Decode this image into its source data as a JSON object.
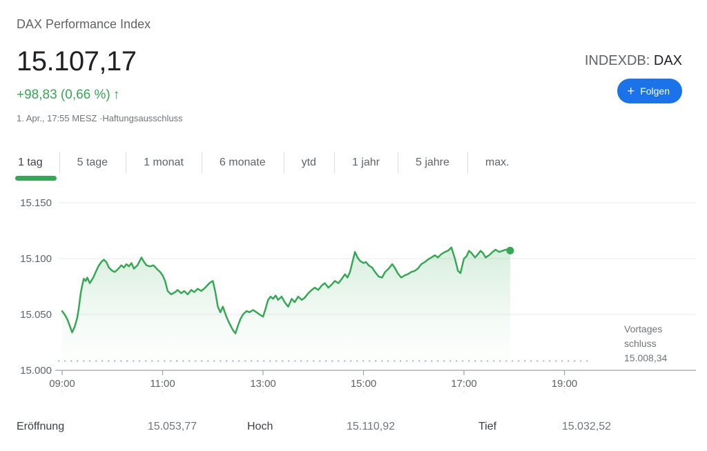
{
  "header": {
    "title": "DAX Performance Index",
    "price": "15.107,17",
    "change": "+98,83 (0,66 %)",
    "change_arrow": "↑",
    "change_direction": "up",
    "timestamp": "1. Apr., 17:55 MESZ",
    "separator": "·",
    "disclaimer": "Haftungsausschluss",
    "exchange": "INDEXDB:",
    "symbol": "DAX",
    "follow_plus": "+",
    "follow_label": "Folgen"
  },
  "tabs": [
    {
      "label": "1 tag",
      "active": true
    },
    {
      "label": "5 tage",
      "active": false
    },
    {
      "label": "1 monat",
      "active": false
    },
    {
      "label": "6 monate",
      "active": false
    },
    {
      "label": "ytd",
      "active": false
    },
    {
      "label": "1 jahr",
      "active": false
    },
    {
      "label": "5 jahre",
      "active": false
    },
    {
      "label": "max.",
      "active": false
    }
  ],
  "chart_data": {
    "type": "area",
    "series_name": "DAX Performance Index (1 tag)",
    "x_unit": "hour_of_day",
    "x_range_hours": [
      9.0,
      17.92
    ],
    "ylim": [
      15000,
      15165
    ],
    "grid": "horizontal",
    "y_ticks": [
      {
        "label": "15.000",
        "value": 15000
      },
      {
        "label": "15.050",
        "value": 15050
      },
      {
        "label": "15.100",
        "value": 15100
      },
      {
        "label": "15.150",
        "value": 15150
      }
    ],
    "x_ticks": [
      {
        "label": "09:00",
        "hour": 9
      },
      {
        "label": "11:00",
        "hour": 11
      },
      {
        "label": "13:00",
        "hour": 13
      },
      {
        "label": "15:00",
        "hour": 15
      },
      {
        "label": "17:00",
        "hour": 17
      },
      {
        "label": "19:00",
        "hour": 19
      }
    ],
    "previous_close": {
      "value": 15008.34,
      "label_line1": "Vortages",
      "label_line2": "schluss",
      "value_label": "15.008,34"
    },
    "series": [
      {
        "name": "DAX",
        "points": [
          [
            9.0,
            15053
          ],
          [
            9.05,
            15050
          ],
          [
            9.1,
            15046
          ],
          [
            9.15,
            15040
          ],
          [
            9.2,
            15034
          ],
          [
            9.25,
            15039
          ],
          [
            9.3,
            15047
          ],
          [
            9.33,
            15055
          ],
          [
            9.37,
            15069
          ],
          [
            9.4,
            15076
          ],
          [
            9.43,
            15082
          ],
          [
            9.47,
            15080
          ],
          [
            9.5,
            15083
          ],
          [
            9.55,
            15078
          ],
          [
            9.62,
            15083
          ],
          [
            9.67,
            15088
          ],
          [
            9.72,
            15093
          ],
          [
            9.78,
            15097
          ],
          [
            9.83,
            15099
          ],
          [
            9.88,
            15097
          ],
          [
            9.93,
            15092
          ],
          [
            10.0,
            15089
          ],
          [
            10.05,
            15088
          ],
          [
            10.12,
            15091
          ],
          [
            10.18,
            15094
          ],
          [
            10.23,
            15092
          ],
          [
            10.28,
            15095
          ],
          [
            10.33,
            15093
          ],
          [
            10.38,
            15096
          ],
          [
            10.43,
            15091
          ],
          [
            10.5,
            15094
          ],
          [
            10.58,
            15101
          ],
          [
            10.63,
            15097
          ],
          [
            10.68,
            15094
          ],
          [
            10.75,
            15093
          ],
          [
            10.82,
            15094
          ],
          [
            10.88,
            15091
          ],
          [
            10.95,
            15088
          ],
          [
            11.0,
            15085
          ],
          [
            11.05,
            15080
          ],
          [
            11.1,
            15071
          ],
          [
            11.17,
            15068
          ],
          [
            11.25,
            15070
          ],
          [
            11.3,
            15072
          ],
          [
            11.37,
            15069
          ],
          [
            11.43,
            15071
          ],
          [
            11.5,
            15068
          ],
          [
            11.57,
            15072
          ],
          [
            11.63,
            15070
          ],
          [
            11.7,
            15073
          ],
          [
            11.77,
            15071
          ],
          [
            11.85,
            15074
          ],
          [
            11.93,
            15078
          ],
          [
            12.0,
            15080
          ],
          [
            12.05,
            15070
          ],
          [
            12.1,
            15057
          ],
          [
            12.15,
            15052
          ],
          [
            12.2,
            15057
          ],
          [
            12.27,
            15048
          ],
          [
            12.33,
            15042
          ],
          [
            12.4,
            15036
          ],
          [
            12.45,
            15033
          ],
          [
            12.5,
            15040
          ],
          [
            12.55,
            15046
          ],
          [
            12.6,
            15050
          ],
          [
            12.67,
            15053
          ],
          [
            12.73,
            15052
          ],
          [
            12.8,
            15054
          ],
          [
            12.87,
            15052
          ],
          [
            12.93,
            15050
          ],
          [
            13.0,
            15048
          ],
          [
            13.05,
            15055
          ],
          [
            13.1,
            15063
          ],
          [
            13.15,
            15066
          ],
          [
            13.2,
            15064
          ],
          [
            13.25,
            15067
          ],
          [
            13.3,
            15063
          ],
          [
            13.37,
            15066
          ],
          [
            13.43,
            15061
          ],
          [
            13.5,
            15057
          ],
          [
            13.57,
            15064
          ],
          [
            13.63,
            15061
          ],
          [
            13.7,
            15066
          ],
          [
            13.77,
            15063
          ],
          [
            13.83,
            15065
          ],
          [
            13.9,
            15069
          ],
          [
            13.97,
            15072
          ],
          [
            14.03,
            15074
          ],
          [
            14.1,
            15072
          ],
          [
            14.17,
            15076
          ],
          [
            14.23,
            15078
          ],
          [
            14.3,
            15074
          ],
          [
            14.37,
            15077
          ],
          [
            14.43,
            15080
          ],
          [
            14.5,
            15078
          ],
          [
            14.57,
            15082
          ],
          [
            14.63,
            15086
          ],
          [
            14.68,
            15083
          ],
          [
            14.73,
            15088
          ],
          [
            14.78,
            15097
          ],
          [
            14.83,
            15106
          ],
          [
            14.88,
            15101
          ],
          [
            14.93,
            15098
          ],
          [
            15.0,
            15096
          ],
          [
            15.05,
            15097
          ],
          [
            15.1,
            15094
          ],
          [
            15.17,
            15092
          ],
          [
            15.23,
            15088
          ],
          [
            15.3,
            15084
          ],
          [
            15.37,
            15083
          ],
          [
            15.43,
            15088
          ],
          [
            15.5,
            15091
          ],
          [
            15.57,
            15095
          ],
          [
            15.62,
            15092
          ],
          [
            15.68,
            15087
          ],
          [
            15.75,
            15083
          ],
          [
            15.82,
            15085
          ],
          [
            15.88,
            15086
          ],
          [
            15.95,
            15088
          ],
          [
            16.02,
            15089
          ],
          [
            16.08,
            15091
          ],
          [
            16.15,
            15095
          ],
          [
            16.22,
            15097
          ],
          [
            16.28,
            15099
          ],
          [
            16.35,
            15101
          ],
          [
            16.42,
            15103
          ],
          [
            16.48,
            15101
          ],
          [
            16.55,
            15104
          ],
          [
            16.62,
            15106
          ],
          [
            16.68,
            15107
          ],
          [
            16.75,
            15110
          ],
          [
            16.82,
            15100
          ],
          [
            16.88,
            15089
          ],
          [
            16.93,
            15087
          ],
          [
            17.0,
            15100
          ],
          [
            17.05,
            15102
          ],
          [
            17.1,
            15107
          ],
          [
            17.15,
            15105
          ],
          [
            17.22,
            15101
          ],
          [
            17.28,
            15104
          ],
          [
            17.33,
            15107
          ],
          [
            17.38,
            15105
          ],
          [
            17.43,
            15101
          ],
          [
            17.5,
            15103
          ],
          [
            17.57,
            15106
          ],
          [
            17.63,
            15108
          ],
          [
            17.7,
            15106
          ],
          [
            17.77,
            15107
          ],
          [
            17.83,
            15108
          ],
          [
            17.88,
            15108
          ],
          [
            17.92,
            15107.17
          ]
        ]
      }
    ],
    "end_point": {
      "hour": 17.92,
      "value": 15107.17
    }
  },
  "stats": [
    {
      "label": "Eröffnung",
      "value": "15.053,77"
    },
    {
      "label": "Hoch",
      "value": "15.110,92"
    },
    {
      "label": "Tief",
      "value": "15.032,52"
    }
  ],
  "colors": {
    "green": "#34a853",
    "blue": "#1a73e8",
    "price_text": "#202124",
    "secondary_text": "#70757a",
    "axis_text": "#5f6368",
    "gridline": "#e8eaed",
    "axis_line": "#9aa0a6",
    "divider": "#dadce0"
  }
}
